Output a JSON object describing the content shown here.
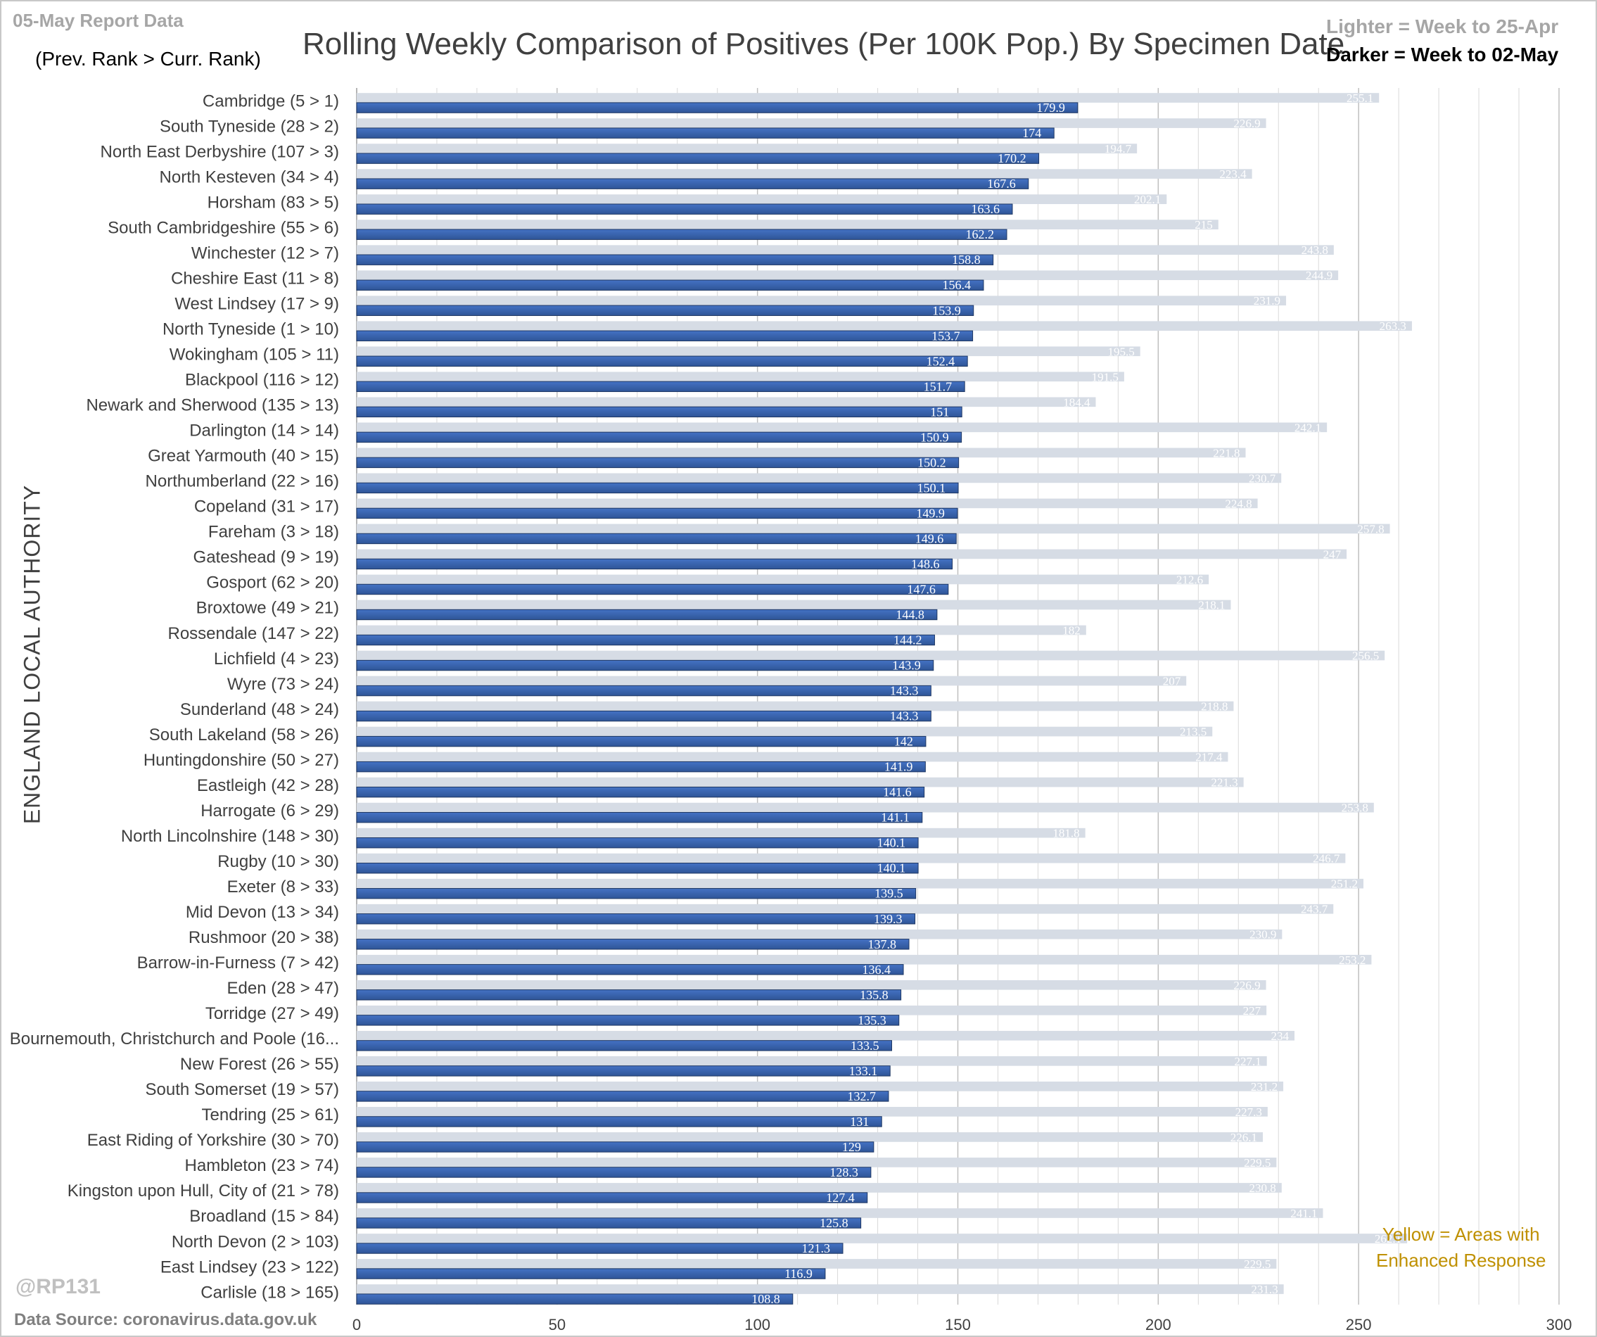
{
  "header": {
    "report_date": "05-May Report Data",
    "rank_note": "(Prev. Rank > Curr. Rank)",
    "title": "Rolling Weekly Comparison of Positives  (Per 100K Pop.) By Specimen Date",
    "legend_lighter": "Lighter =  Week to 25-Apr",
    "legend_darker": "Darker =  Week to 02-May"
  },
  "footer": {
    "handle": "@RP131",
    "source": "Data Source: coronavirus.data.gov.uk",
    "yellow_note_line1": "Yellow = Areas with",
    "yellow_note_line2": "Enhanced Response"
  },
  "colors": {
    "previous_week_bar": "#d6dce5",
    "current_week_bar": "#2f5597",
    "gridline": "#d9d9d9",
    "yellow_note": "#bf9000"
  },
  "chart_data": {
    "type": "bar",
    "orientation": "horizontal",
    "title": "Rolling Weekly Comparison of Positives  (Per 100K Pop.) By Specimen Date",
    "ylabel": "ENGLAND LOCAL AUTHORITY",
    "xlabel": "",
    "xlim": [
      0,
      300
    ],
    "xticks": [
      0,
      50,
      100,
      150,
      200,
      250,
      300
    ],
    "grid": true,
    "legend": "top-right",
    "categories": [
      "Cambridge (5 > 1)",
      "South Tyneside (28 > 2)",
      "North East Derbyshire (107 > 3)",
      "North Kesteven (34 > 4)",
      "Horsham (83 > 5)",
      "South Cambridgeshire (55 > 6)",
      "Winchester (12 > 7)",
      "Cheshire East (11 > 8)",
      "West Lindsey (17 > 9)",
      "North Tyneside (1 > 10)",
      "Wokingham (105 > 11)",
      "Blackpool (116 > 12)",
      "Newark and Sherwood (135 > 13)",
      "Darlington (14 > 14)",
      "Great Yarmouth (40 > 15)",
      "Northumberland (22 > 16)",
      "Copeland (31 > 17)",
      "Fareham (3 > 18)",
      "Gateshead (9 > 19)",
      "Gosport (62 > 20)",
      "Broxtowe (49 > 21)",
      "Rossendale (147 > 22)",
      "Lichfield (4 > 23)",
      "Wyre (73 > 24)",
      "Sunderland (48 > 24)",
      "South Lakeland (58 > 26)",
      "Huntingdonshire (50 > 27)",
      "Eastleigh (42 > 28)",
      "Harrogate (6 > 29)",
      "North Lincolnshire (148 > 30)",
      "Rugby (10 > 30)",
      "Exeter (8 > 33)",
      "Mid Devon (13 > 34)",
      "Rushmoor (20 > 38)",
      "Barrow-in-Furness (7 > 42)",
      "Eden (28 > 47)",
      "Torridge (27 > 49)",
      "Bournemouth, Christchurch and Poole (16...",
      "New Forest (26 > 55)",
      "South Somerset (19 > 57)",
      "Tendring (25 > 61)",
      "East Riding of Yorkshire (30 > 70)",
      "Hambleton (23 > 74)",
      "Kingston upon Hull, City of (21 > 78)",
      "Broadland (15 > 84)",
      "North Devon (2 > 103)",
      "East Lindsey (23 > 122)",
      "Carlisle (18 > 165)"
    ],
    "series": [
      {
        "name": "Week to 25-Apr",
        "values": [
          255.1,
          226.9,
          194.7,
          223.4,
          202.1,
          215,
          243.8,
          244.9,
          231.9,
          263.3,
          195.5,
          191.5,
          184.4,
          242.1,
          221.8,
          230.7,
          224.8,
          257.8,
          247,
          212.6,
          218.1,
          182,
          256.5,
          207,
          218.8,
          213.5,
          217.4,
          221.3,
          253.8,
          181.8,
          246.7,
          251.2,
          243.7,
          230.9,
          253.2,
          226.9,
          227,
          234,
          227.1,
          231.2,
          227.3,
          226.1,
          229.5,
          230.8,
          241.1,
          262.1,
          229.5,
          231.3
        ]
      },
      {
        "name": "Week to 02-May",
        "values": [
          179.9,
          174,
          170.2,
          167.6,
          163.6,
          162.2,
          158.8,
          156.4,
          153.9,
          153.7,
          152.4,
          151.7,
          151,
          150.9,
          150.2,
          150.1,
          149.9,
          149.6,
          148.6,
          147.6,
          144.8,
          144.2,
          143.9,
          143.3,
          143.3,
          142,
          141.9,
          141.6,
          141.1,
          140.1,
          140.1,
          139.5,
          139.3,
          137.8,
          136.4,
          135.8,
          135.3,
          133.5,
          133.1,
          132.7,
          131,
          129,
          128.3,
          127.4,
          125.8,
          121.3,
          116.9,
          108.8
        ]
      }
    ]
  }
}
